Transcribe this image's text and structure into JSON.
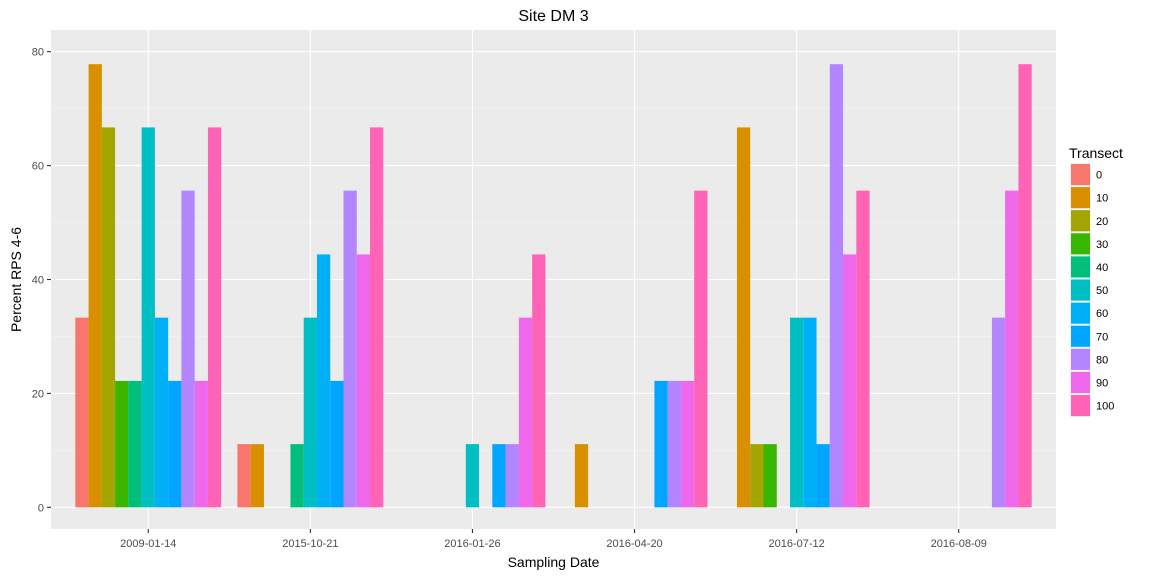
{
  "chart_data": {
    "type": "bar",
    "title": "Site DM 3",
    "xlabel": "Sampling Date",
    "ylabel": "Percent RPS 4-6",
    "ylim": [
      0,
      80
    ],
    "yticks": [
      0,
      20,
      40,
      60,
      80
    ],
    "grid": true,
    "legend_position": "right",
    "legend_title": "Transect",
    "categories": [
      "2009-01-14",
      "2015-10-21",
      "2016-01-26",
      "2016-04-20",
      "2016-07-12",
      "2016-08-09"
    ],
    "series": [
      {
        "name": "0",
        "color": "#F8766D",
        "values": [
          33.3,
          11.1,
          null,
          null,
          null,
          null
        ]
      },
      {
        "name": "10",
        "color": "#D89000",
        "values": [
          77.8,
          11.1,
          null,
          11.1,
          66.7,
          null
        ]
      },
      {
        "name": "20",
        "color": "#A3A500",
        "values": [
          66.7,
          null,
          null,
          null,
          11.1,
          null
        ]
      },
      {
        "name": "30",
        "color": "#39B600",
        "values": [
          22.2,
          null,
          null,
          null,
          11.1,
          null
        ]
      },
      {
        "name": "40",
        "color": "#00BF7D",
        "values": [
          22.2,
          11.1,
          null,
          null,
          null,
          null
        ]
      },
      {
        "name": "50",
        "color": "#00BFC4",
        "values": [
          66.7,
          33.3,
          11.1,
          null,
          33.3,
          null
        ]
      },
      {
        "name": "60",
        "color": "#00B0F6",
        "values": [
          33.3,
          44.4,
          null,
          null,
          33.3,
          null
        ]
      },
      {
        "name": "70",
        "color": "#00A5FF",
        "values": [
          22.2,
          22.2,
          11.1,
          22.2,
          11.1,
          null
        ]
      },
      {
        "name": "80",
        "color": "#B385FF",
        "values": [
          55.6,
          55.6,
          11.1,
          22.2,
          77.8,
          33.3
        ]
      },
      {
        "name": "90",
        "color": "#EF67EB",
        "values": [
          22.2,
          44.4,
          33.3,
          22.2,
          44.4,
          55.6
        ]
      },
      {
        "name": "100",
        "color": "#FF63B6",
        "values": [
          66.7,
          66.7,
          44.4,
          55.6,
          55.6,
          77.8
        ]
      }
    ]
  }
}
